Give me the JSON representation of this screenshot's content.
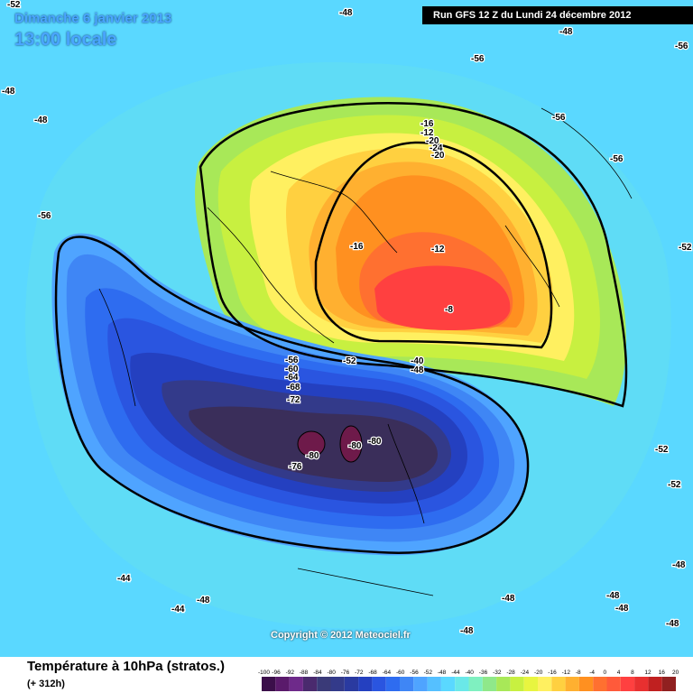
{
  "header": {
    "date": "Dimanche 6 janvier 2013",
    "time": "13:00 locale",
    "run": "Run GFS 12 Z du Lundi 24 décembre 2012"
  },
  "footer": {
    "title": "Température à 10hPa (stratos.)",
    "subtitle": "(+ 312h)",
    "copyright": "Copyright © 2012 Meteociel.fr"
  },
  "scale": {
    "ticks": [
      "-100",
      "-96",
      "-92",
      "-88",
      "-84",
      "-80",
      "-76",
      "-72",
      "-68",
      "-64",
      "-60",
      "-56",
      "-52",
      "-48",
      "-44",
      "-40",
      "-36",
      "-32",
      "-28",
      "-24",
      "-20",
      "-16",
      "-12",
      "-8",
      "-4",
      "0",
      "4",
      "8",
      "12",
      "16",
      "20"
    ],
    "colors": [
      "#3b0f4a",
      "#5a1a6b",
      "#6e2a8a",
      "#4a2a6e",
      "#3a3a78",
      "#333a8a",
      "#2a3aa0",
      "#2440c0",
      "#2a55e0",
      "#2e6cf0",
      "#3f86f5",
      "#4fa4ff",
      "#55c0ff",
      "#5ad8ff",
      "#6ae8e8",
      "#7ff0c0",
      "#8fe88a",
      "#a8e858",
      "#c8f040",
      "#e8f540",
      "#fff060",
      "#ffd040",
      "#ffb030",
      "#ff9020",
      "#ff7030",
      "#ff5a3a",
      "#ff4040",
      "#e83030",
      "#c02020",
      "#902020"
    ]
  },
  "contour_labels": [
    "-52",
    "-48",
    "-48",
    "-56",
    "-48",
    "-48",
    "-56",
    "-56",
    "-52",
    "-56",
    "-56",
    "-16",
    "-12",
    "-20",
    "-24",
    "-20",
    "-16",
    "-12",
    "-8",
    "-56",
    "-60",
    "-64",
    "-68",
    "-72",
    "-52",
    "-40",
    "-48",
    "-80",
    "-80",
    "-80",
    "-76",
    "-52",
    "-52",
    "-48",
    "-44",
    "-48",
    "-44",
    "-48",
    "-48",
    "-48",
    "-48",
    "-48"
  ],
  "colors": {
    "background": "#5ad8ff",
    "polar_cold_core": "#3a2e5a",
    "warm_core": "#ff4040"
  }
}
